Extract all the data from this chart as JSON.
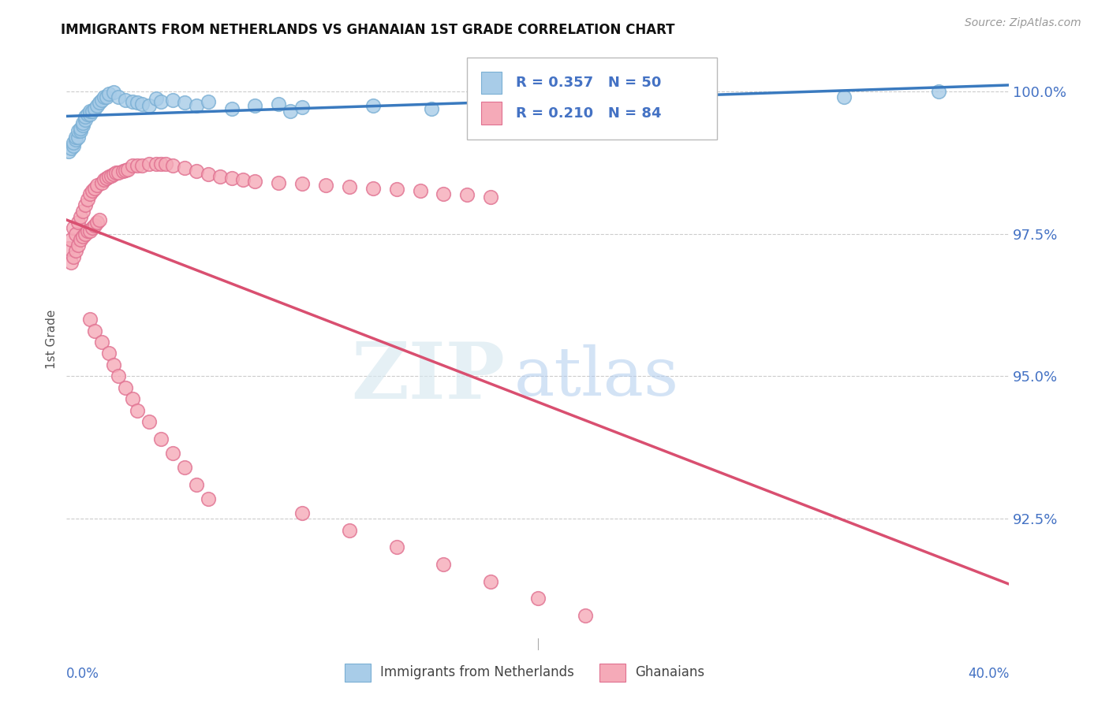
{
  "title": "IMMIGRANTS FROM NETHERLANDS VS GHANAIAN 1ST GRADE CORRELATION CHART",
  "source": "Source: ZipAtlas.com",
  "ylabel": "1st Grade",
  "ytick_labels": [
    "100.0%",
    "97.5%",
    "95.0%",
    "92.5%"
  ],
  "ytick_values": [
    1.0,
    0.975,
    0.95,
    0.925
  ],
  "xmin": 0.0,
  "xmax": 0.4,
  "ymin": 0.905,
  "ymax": 1.008,
  "legend_blue_r": "0.357",
  "legend_blue_n": "50",
  "legend_pink_r": "0.210",
  "legend_pink_n": "84",
  "legend_label_blue": "Immigrants from Netherlands",
  "legend_label_pink": "Ghanaians",
  "blue_color": "#a8cce8",
  "blue_edge_color": "#7aafd4",
  "pink_color": "#f5aab8",
  "pink_edge_color": "#e07090",
  "blue_line_color": "#3a7abf",
  "pink_line_color": "#d94f70",
  "label_color": "#4472c4",
  "grid_color": "#cccccc",
  "blue_scatter_x": [
    0.001,
    0.002,
    0.003,
    0.003,
    0.004,
    0.004,
    0.005,
    0.005,
    0.006,
    0.006,
    0.007,
    0.007,
    0.008,
    0.008,
    0.009,
    0.01,
    0.01,
    0.011,
    0.012,
    0.013,
    0.014,
    0.015,
    0.016,
    0.017,
    0.018,
    0.02,
    0.022,
    0.025,
    0.028,
    0.03,
    0.032,
    0.035,
    0.038,
    0.04,
    0.045,
    0.05,
    0.055,
    0.06,
    0.07,
    0.08,
    0.09,
    0.095,
    0.1,
    0.13,
    0.155,
    0.18,
    0.2,
    0.26,
    0.33,
    0.37
  ],
  "blue_scatter_y": [
    0.9895,
    0.99,
    0.9905,
    0.991,
    0.9915,
    0.992,
    0.992,
    0.993,
    0.993,
    0.9935,
    0.994,
    0.9945,
    0.995,
    0.9955,
    0.996,
    0.996,
    0.9965,
    0.9965,
    0.997,
    0.9975,
    0.998,
    0.9985,
    0.999,
    0.999,
    0.9995,
    0.9998,
    0.999,
    0.9985,
    0.9982,
    0.998,
    0.9978,
    0.9975,
    0.9988,
    0.9982,
    0.9985,
    0.998,
    0.9975,
    0.9982,
    0.997,
    0.9975,
    0.9978,
    0.9965,
    0.9972,
    0.9975,
    0.997,
    0.9968,
    0.9978,
    0.9985,
    0.999,
    1.0
  ],
  "pink_scatter_x": [
    0.001,
    0.002,
    0.002,
    0.003,
    0.003,
    0.004,
    0.004,
    0.005,
    0.005,
    0.006,
    0.006,
    0.007,
    0.007,
    0.008,
    0.008,
    0.009,
    0.009,
    0.01,
    0.01,
    0.011,
    0.011,
    0.012,
    0.012,
    0.013,
    0.013,
    0.014,
    0.015,
    0.016,
    0.017,
    0.018,
    0.019,
    0.02,
    0.021,
    0.022,
    0.024,
    0.025,
    0.026,
    0.028,
    0.03,
    0.032,
    0.035,
    0.038,
    0.04,
    0.042,
    0.045,
    0.05,
    0.055,
    0.06,
    0.065,
    0.07,
    0.075,
    0.08,
    0.09,
    0.1,
    0.11,
    0.12,
    0.13,
    0.14,
    0.15,
    0.16,
    0.17,
    0.18,
    0.01,
    0.012,
    0.015,
    0.018,
    0.02,
    0.022,
    0.025,
    0.028,
    0.03,
    0.035,
    0.04,
    0.045,
    0.05,
    0.055,
    0.06,
    0.1,
    0.12,
    0.14,
    0.16,
    0.18,
    0.2,
    0.22
  ],
  "pink_scatter_y": [
    0.9725,
    0.97,
    0.974,
    0.971,
    0.976,
    0.972,
    0.975,
    0.973,
    0.977,
    0.974,
    0.978,
    0.9745,
    0.979,
    0.975,
    0.98,
    0.9755,
    0.981,
    0.9755,
    0.982,
    0.976,
    0.9825,
    0.9765,
    0.983,
    0.977,
    0.9835,
    0.9775,
    0.984,
    0.9845,
    0.9848,
    0.985,
    0.9852,
    0.9855,
    0.9858,
    0.9858,
    0.986,
    0.9862,
    0.9863,
    0.987,
    0.987,
    0.987,
    0.9872,
    0.9872,
    0.9873,
    0.9872,
    0.987,
    0.9865,
    0.986,
    0.9855,
    0.985,
    0.9848,
    0.9845,
    0.9842,
    0.984,
    0.9838,
    0.9835,
    0.9832,
    0.983,
    0.9828,
    0.9825,
    0.982,
    0.9818,
    0.9815,
    0.96,
    0.958,
    0.956,
    0.954,
    0.952,
    0.95,
    0.948,
    0.946,
    0.944,
    0.942,
    0.939,
    0.9365,
    0.934,
    0.931,
    0.9285,
    0.926,
    0.923,
    0.92,
    0.917,
    0.914,
    0.911,
    0.908
  ]
}
